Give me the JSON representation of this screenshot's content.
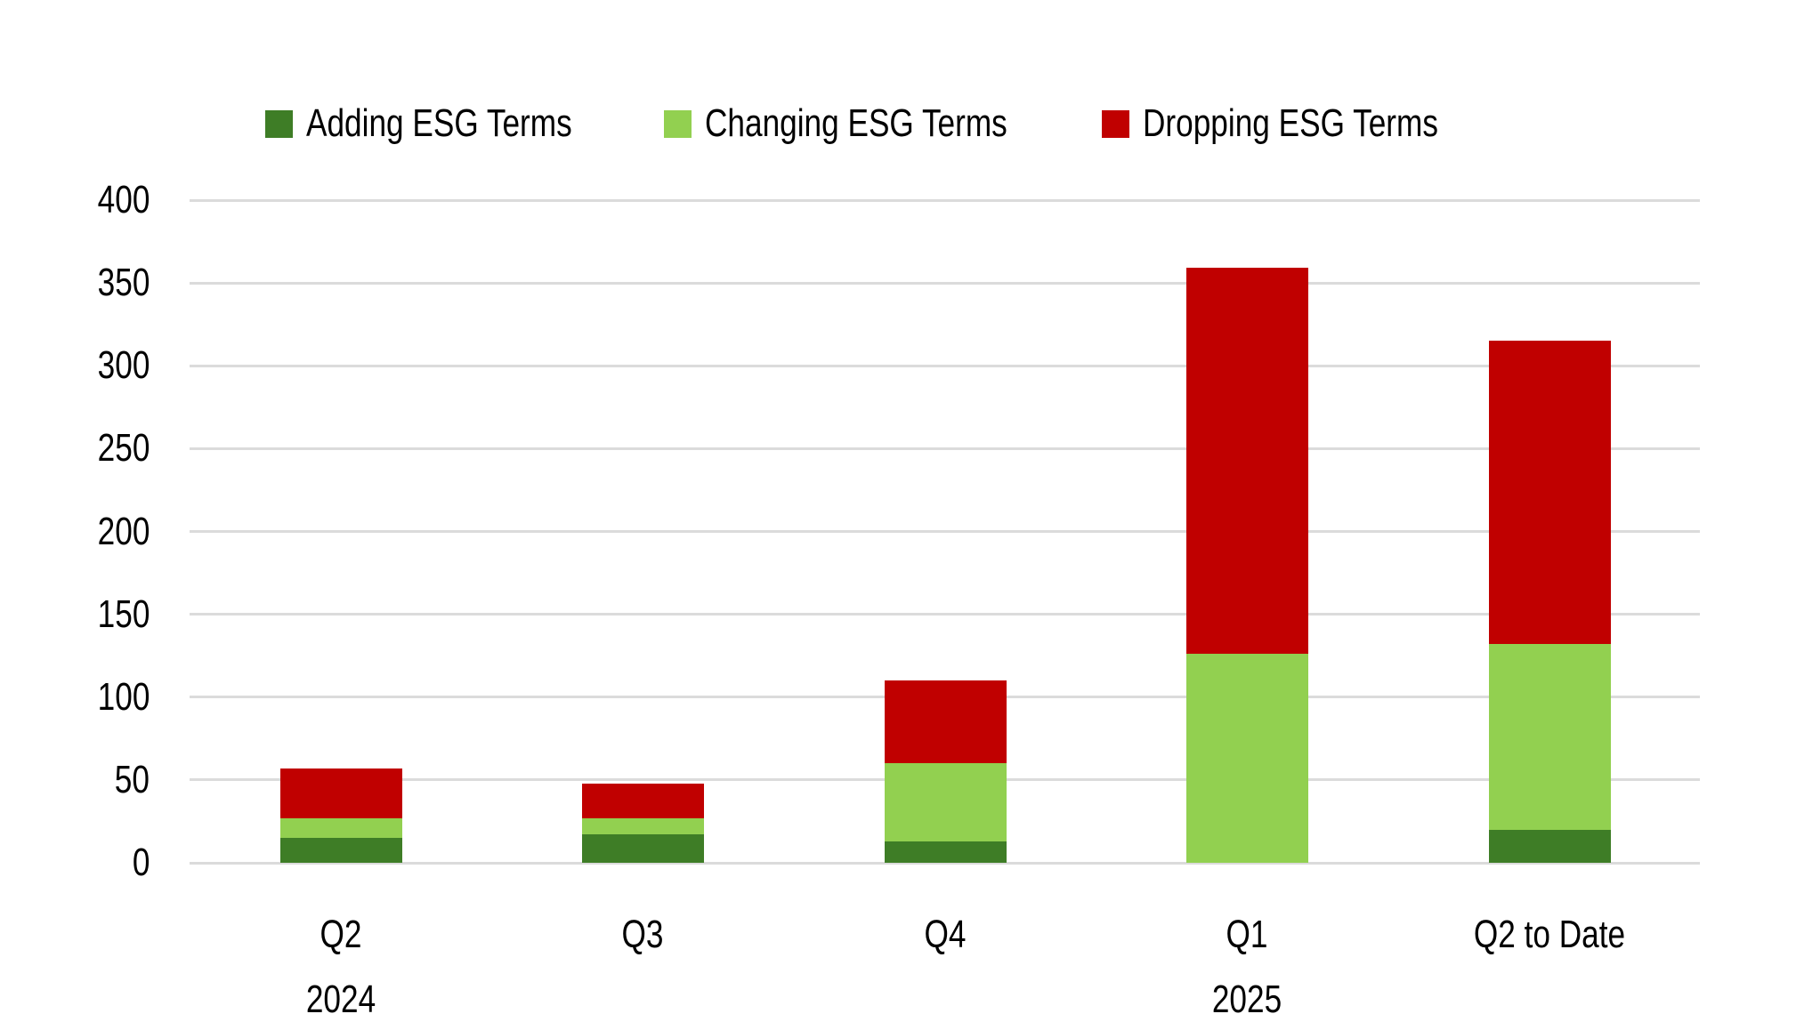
{
  "chart_data": {
    "type": "bar",
    "stacked": true,
    "title": "",
    "categories": [
      {
        "lines": [
          "Q2",
          "2024"
        ]
      },
      {
        "lines": [
          "Q3"
        ]
      },
      {
        "lines": [
          "Q4"
        ]
      },
      {
        "lines": [
          "Q1",
          "2025"
        ]
      },
      {
        "lines": [
          "Q2 to Date"
        ]
      }
    ],
    "series": [
      {
        "name": "Adding ESG Terms",
        "color": "#3E7D26",
        "values": [
          15,
          17,
          13,
          0,
          20
        ]
      },
      {
        "name": "Changing ESG Terms",
        "color": "#92D050",
        "values": [
          12,
          10,
          47,
          126,
          112
        ]
      },
      {
        "name": "Dropping ESG Terms",
        "color": "#C00000",
        "values": [
          30,
          21,
          50,
          233,
          183
        ]
      }
    ],
    "totals": [
      57,
      48,
      110,
      359,
      315
    ],
    "y_axis": {
      "min": 0,
      "max": 400,
      "step": 50,
      "tick_labels": [
        "0",
        "50",
        "100",
        "150",
        "200",
        "250",
        "300",
        "350",
        "400"
      ]
    },
    "grid": true,
    "legend_position": "top",
    "colors": {
      "background": "#FFFFFF",
      "gridline": "#DBDBDB",
      "text": "#000000"
    }
  }
}
